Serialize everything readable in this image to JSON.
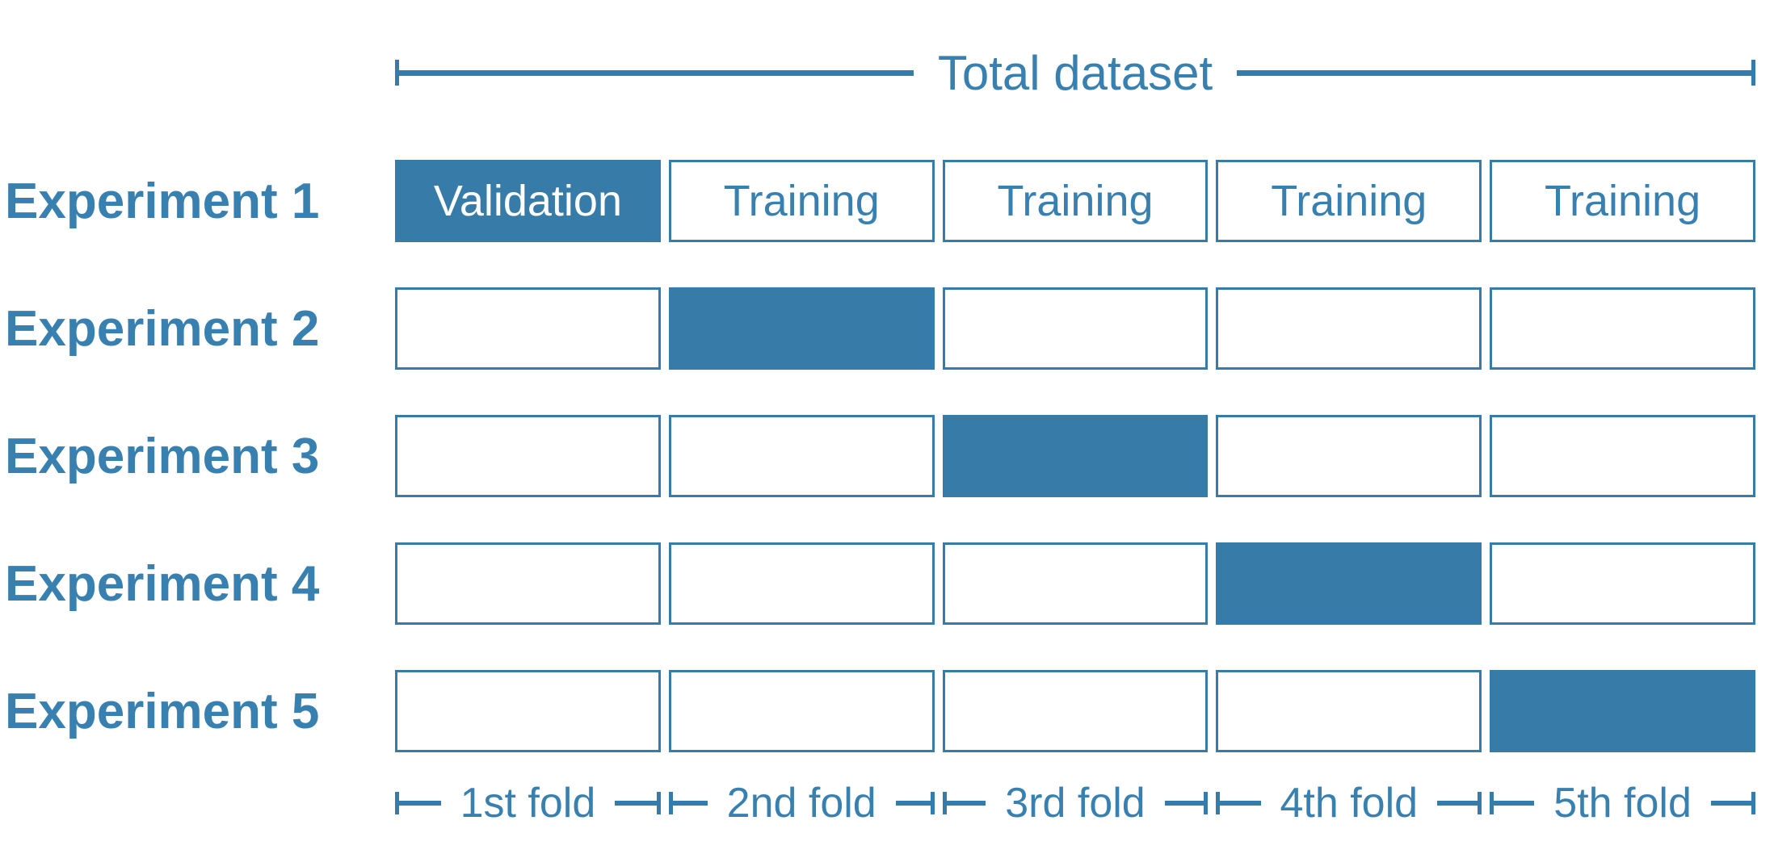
{
  "title": "Total dataset",
  "colors": {
    "accent": "#377CA9",
    "text_blue": "#3880B0",
    "filled_cell_text": "#FFFFFF",
    "background": "#FFFFFF"
  },
  "experiments": [
    {
      "label": "Experiment 1",
      "cells": [
        {
          "text": "Validation",
          "filled": true
        },
        {
          "text": "Training",
          "filled": false
        },
        {
          "text": "Training",
          "filled": false
        },
        {
          "text": "Training",
          "filled": false
        },
        {
          "text": "Training",
          "filled": false
        }
      ]
    },
    {
      "label": "Experiment 2",
      "cells": [
        {
          "text": "",
          "filled": false
        },
        {
          "text": "",
          "filled": true
        },
        {
          "text": "",
          "filled": false
        },
        {
          "text": "",
          "filled": false
        },
        {
          "text": "",
          "filled": false
        }
      ]
    },
    {
      "label": "Experiment 3",
      "cells": [
        {
          "text": "",
          "filled": false
        },
        {
          "text": "",
          "filled": false
        },
        {
          "text": "",
          "filled": true
        },
        {
          "text": "",
          "filled": false
        },
        {
          "text": "",
          "filled": false
        }
      ]
    },
    {
      "label": "Experiment 4",
      "cells": [
        {
          "text": "",
          "filled": false
        },
        {
          "text": "",
          "filled": false
        },
        {
          "text": "",
          "filled": false
        },
        {
          "text": "",
          "filled": true
        },
        {
          "text": "",
          "filled": false
        }
      ]
    },
    {
      "label": "Experiment 5",
      "cells": [
        {
          "text": "",
          "filled": false
        },
        {
          "text": "",
          "filled": false
        },
        {
          "text": "",
          "filled": false
        },
        {
          "text": "",
          "filled": false
        },
        {
          "text": "",
          "filled": true
        }
      ]
    }
  ],
  "folds": [
    "1st fold",
    "2nd fold",
    "3rd fold",
    "4th fold",
    "5th fold"
  ]
}
